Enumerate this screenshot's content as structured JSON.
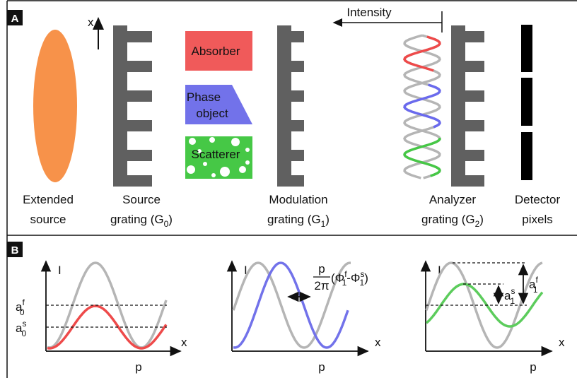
{
  "panel_a": {
    "label": "A",
    "axis": "x",
    "intensity": "Intensity",
    "absorber": "Absorber",
    "phase_object": [
      "Phase",
      "object"
    ],
    "scatterer": "Scatterer",
    "components": [
      {
        "lines": [
          "Extended",
          "source"
        ]
      },
      {
        "lines": [
          "Source",
          "grating (G"
        ],
        "sub": "0",
        "close": ")"
      },
      {
        "lines": [
          "Modulation",
          "grating (G"
        ],
        "sub": "1",
        "close": ")"
      },
      {
        "lines": [
          "Analyzer",
          "grating (G"
        ],
        "sub": "2",
        "close": ")"
      },
      {
        "lines": [
          "Detector",
          "pixels"
        ]
      }
    ]
  },
  "panel_b": {
    "label": "B",
    "plots": [
      {
        "y_axis": "I",
        "x_axis": "x",
        "period": "p"
      },
      {
        "y_axis": "I",
        "x_axis": "x",
        "period": "p"
      },
      {
        "y_axis": "I",
        "x_axis": "x",
        "period": "p"
      }
    ],
    "amplitudes_0": [
      {
        "symbol": "a",
        "sub": "0",
        "sup": "f"
      },
      {
        "symbol": "a",
        "sub": "0",
        "sup": "s"
      }
    ],
    "phase_shift": {
      "numerator": "p",
      "denominator": "2π",
      "open": "(Φ",
      "sub1": "1",
      "sup1": "f",
      "minus": "-Φ",
      "sub2": "1",
      "sup2": "s",
      "close": ")"
    },
    "amplitudes_1": [
      {
        "symbol": "a",
        "sub": "1",
        "sup": "s"
      },
      {
        "symbol": "a",
        "sub": "1",
        "sup": "f"
      }
    ]
  }
}
